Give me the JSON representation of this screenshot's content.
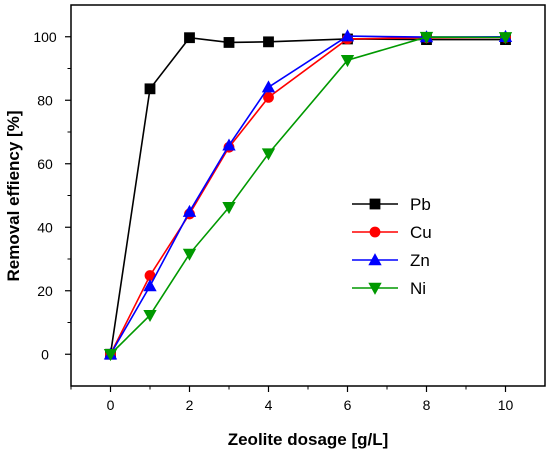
{
  "chart_data": {
    "type": "line",
    "title": "",
    "xlabel": "Zeolite dosage [g/L]",
    "ylabel": "Removal effiency [%]",
    "xlim": [
      -1,
      11
    ],
    "ylim": [
      -10,
      110
    ],
    "x_ticks": [
      0,
      2,
      4,
      6,
      8,
      10
    ],
    "y_ticks": [
      0,
      20,
      40,
      60,
      80,
      100
    ],
    "grid": false,
    "legend_position": "center-right",
    "series": [
      {
        "name": "Pb",
        "color": "#000000",
        "marker": "square",
        "x": [
          0,
          1,
          2,
          3,
          4,
          6,
          8,
          10
        ],
        "y": [
          0,
          83.6,
          99.7,
          98.2,
          98.4,
          99.3,
          99.1,
          99.1
        ]
      },
      {
        "name": "Cu",
        "color": "#ff0000",
        "marker": "circle",
        "x": [
          0,
          1,
          2,
          3,
          4,
          6,
          8,
          10
        ],
        "y": [
          0,
          24.8,
          44.2,
          65.2,
          80.9,
          99.3,
          99.7,
          99.8
        ]
      },
      {
        "name": "Zn",
        "color": "#0000ff",
        "marker": "triangle-up",
        "x": [
          0,
          1,
          2,
          3,
          4,
          6,
          8,
          10
        ],
        "y": [
          0,
          21.5,
          44.9,
          65.8,
          84.1,
          100.2,
          99.9,
          100.0
        ]
      },
      {
        "name": "Ni",
        "color": "#009900",
        "marker": "triangle-down",
        "x": [
          0,
          1,
          2,
          3,
          4,
          6,
          8,
          10
        ],
        "y": [
          0,
          12.3,
          31.6,
          46.3,
          63.2,
          92.6,
          99.9,
          99.8
        ]
      }
    ]
  }
}
